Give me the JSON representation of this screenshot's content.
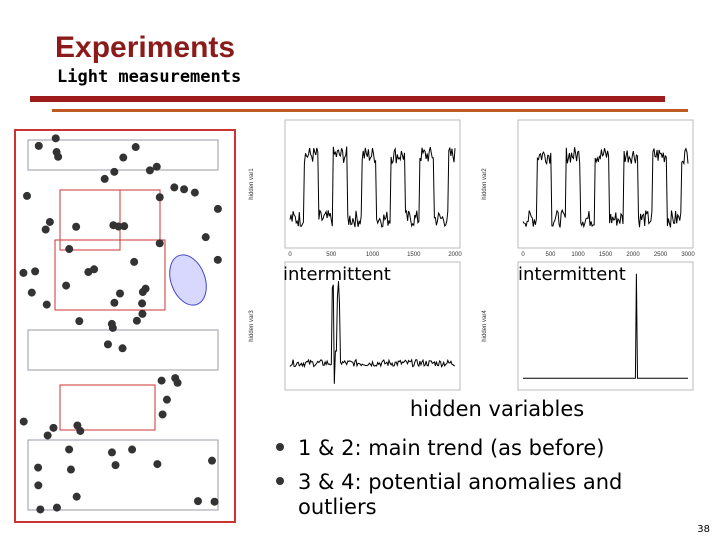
{
  "header": {
    "title": "Experiments",
    "subtitle": "Light measurements"
  },
  "plots": [
    {
      "y_label": "hidden var1",
      "x_ticks": [
        "0",
        "500",
        "1000",
        "1500",
        "2000"
      ]
    },
    {
      "y_label": "hidden var2",
      "x_ticks": [
        "0",
        "500",
        "1000",
        "1500",
        "2000",
        "2500",
        "3000"
      ]
    },
    {
      "y_label": "hidden var3",
      "x_ticks": []
    },
    {
      "y_label": "hidden var4",
      "x_ticks": []
    }
  ],
  "labels": [
    "intermittent",
    "intermittent"
  ],
  "caption": "hidden variables",
  "bullets": [
    "1 & 2: main trend (as before)",
    [
      "3 & 4: potential anomalies and",
      "outliers"
    ]
  ],
  "page_number": "38"
}
